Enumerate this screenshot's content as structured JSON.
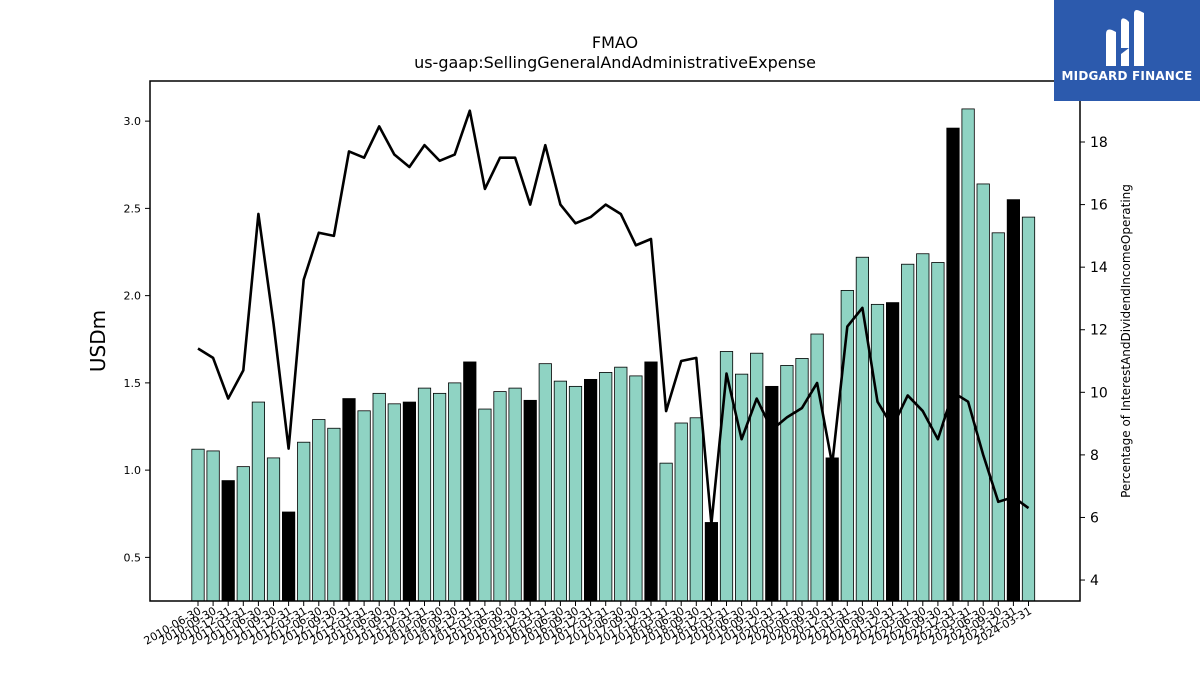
{
  "chart_data": {
    "type": "bar+line",
    "title": "FMAO",
    "subtitle": "us-gaap:SellingGeneralAndAdministrativeExpense",
    "ylabel": "USDm",
    "ylabel_right": "Percentage of InterestAndDividendIncomeOperating",
    "ylim": [
      0.25,
      3.23
    ],
    "ylim_right": [
      3.33,
      19.95
    ],
    "yticks": [
      "0.5",
      "1.0",
      "1.5",
      "2.0",
      "2.5",
      "3.0"
    ],
    "yticks_right": [
      "4",
      "6",
      "8",
      "10",
      "12",
      "14",
      "16",
      "18"
    ],
    "categories": [
      "2010-06-30",
      "2010-09-30",
      "2010-12-31",
      "2011-03-31",
      "2011-06-30",
      "2011-09-30",
      "2011-12-31",
      "2012-03-31",
      "2012-06-30",
      "2012-09-30",
      "2012-12-31",
      "2013-03-31",
      "2013-06-30",
      "2013-09-30",
      "2013-12-31",
      "2014-03-31",
      "2014-06-30",
      "2014-09-30",
      "2014-12-31",
      "2015-03-31",
      "2015-06-30",
      "2015-09-30",
      "2015-12-31",
      "2016-03-31",
      "2016-06-30",
      "2016-09-30",
      "2016-12-31",
      "2017-03-31",
      "2017-06-30",
      "2017-09-30",
      "2017-12-31",
      "2018-03-31",
      "2018-06-30",
      "2018-09-30",
      "2018-12-31",
      "2019-03-31",
      "2019-06-30",
      "2019-09-30",
      "2019-12-31",
      "2020-03-31",
      "2020-06-30",
      "2020-09-30",
      "2020-12-31",
      "2021-03-31",
      "2021-06-30",
      "2021-09-30",
      "2021-12-31",
      "2022-03-31",
      "2022-06-30",
      "2022-09-30",
      "2022-12-31",
      "2023-03-31",
      "2023-06-30",
      "2023-09-30",
      "2023-12-31",
      "2024-03-31"
    ],
    "series": [
      {
        "type": "bar",
        "values": [
          1.12,
          1.11,
          0.94,
          1.02,
          1.39,
          1.07,
          0.76,
          1.16,
          1.29,
          1.24,
          1.41,
          1.34,
          1.44,
          1.38,
          1.39,
          1.47,
          1.44,
          1.5,
          1.62,
          1.35,
          1.45,
          1.47,
          1.4,
          1.61,
          1.51,
          1.48,
          1.52,
          1.56,
          1.59,
          1.54,
          1.62,
          1.04,
          1.27,
          1.3,
          0.7,
          1.68,
          1.55,
          1.67,
          1.48,
          1.6,
          1.64,
          1.78,
          1.07,
          2.03,
          2.22,
          1.95,
          1.96,
          2.18,
          2.24,
          2.19,
          2.96,
          3.07,
          2.64,
          2.36,
          2.55,
          2.45
        ],
        "highlight": [
          false,
          false,
          true,
          false,
          false,
          false,
          true,
          false,
          false,
          false,
          true,
          false,
          false,
          false,
          true,
          false,
          false,
          false,
          true,
          false,
          false,
          false,
          true,
          false,
          false,
          false,
          true,
          false,
          false,
          false,
          true,
          false,
          false,
          false,
          true,
          false,
          false,
          false,
          true,
          false,
          false,
          false,
          true,
          false,
          false,
          false,
          true,
          false,
          false,
          false,
          true,
          false,
          false,
          false,
          true,
          false
        ]
      },
      {
        "type": "line",
        "axis": "right",
        "values": [
          11.4,
          11.1,
          9.8,
          10.7,
          15.7,
          12.2,
          8.2,
          13.6,
          15.1,
          15.0,
          17.7,
          17.5,
          18.5,
          17.6,
          17.2,
          17.9,
          17.4,
          17.6,
          19.0,
          16.5,
          17.5,
          17.5,
          16.0,
          17.9,
          16.0,
          15.4,
          15.6,
          16.0,
          15.7,
          14.7,
          14.9,
          9.4,
          11.0,
          11.1,
          5.8,
          10.6,
          8.5,
          9.8,
          8.8,
          9.2,
          9.5,
          10.3,
          7.7,
          12.1,
          12.7,
          9.7,
          8.9,
          9.9,
          9.4,
          8.5,
          10.0,
          9.7,
          8.0,
          6.5,
          6.65,
          6.3
        ]
      }
    ],
    "colors": {
      "bar": "#8fd3c3",
      "bar_highlight": "#000000",
      "bar_edge": "#000000",
      "line": "#000000"
    },
    "grid": false,
    "legend": "none"
  },
  "logo": {
    "text": "MIDGARD FINANCE",
    "background": "#2c5aad"
  }
}
